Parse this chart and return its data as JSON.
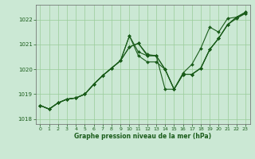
{
  "title": "Graphe pression niveau de la mer (hPa)",
  "bg_color": "#cbe8d4",
  "line_color": "#1a5c1a",
  "grid_color": "#99cc99",
  "xlim": [
    -0.5,
    23.5
  ],
  "ylim": [
    1017.8,
    1022.6
  ],
  "yticks": [
    1018,
    1019,
    1020,
    1021,
    1022
  ],
  "xticks": [
    0,
    1,
    2,
    3,
    4,
    5,
    6,
    7,
    8,
    9,
    10,
    11,
    12,
    13,
    14,
    15,
    16,
    17,
    18,
    19,
    20,
    21,
    22,
    23
  ],
  "series": [
    [
      1018.55,
      1018.4,
      1018.65,
      1018.8,
      1018.85,
      1019.0,
      1019.4,
      1019.75,
      1020.05,
      1020.35,
      1021.35,
      1020.55,
      1020.3,
      1020.3,
      1020.0,
      1019.2,
      1019.8,
      1019.8,
      1020.05,
      1020.8,
      1021.25,
      1021.8,
      1022.1,
      1022.3
    ],
    [
      1018.55,
      1018.4,
      1018.65,
      1018.8,
      1018.85,
      1019.0,
      1019.4,
      1019.75,
      1020.05,
      1020.35,
      1020.9,
      1021.05,
      1020.6,
      1020.55,
      1020.0,
      1019.2,
      1019.8,
      1019.8,
      1020.05,
      1020.8,
      1021.25,
      1021.8,
      1022.05,
      1022.25
    ],
    [
      1018.55,
      1018.4,
      1018.65,
      1018.8,
      1018.85,
      1019.0,
      1019.4,
      1019.75,
      1020.05,
      1020.35,
      1020.9,
      1021.05,
      1020.55,
      1020.55,
      1019.2,
      1019.2,
      1019.85,
      1020.2,
      1020.85,
      1021.7,
      1021.5,
      1022.05,
      1022.1,
      1022.25
    ],
    [
      1018.55,
      1018.4,
      1018.65,
      1018.8,
      1018.85,
      1019.0,
      1019.4,
      1019.75,
      1020.05,
      1020.35,
      1021.35,
      1020.7,
      1020.55,
      1020.55,
      1020.0,
      1019.2,
      1019.8,
      1019.8,
      1020.05,
      1020.8,
      1021.25,
      1021.8,
      1022.1,
      1022.3
    ]
  ],
  "figsize": [
    3.2,
    2.0
  ],
  "dpi": 100
}
